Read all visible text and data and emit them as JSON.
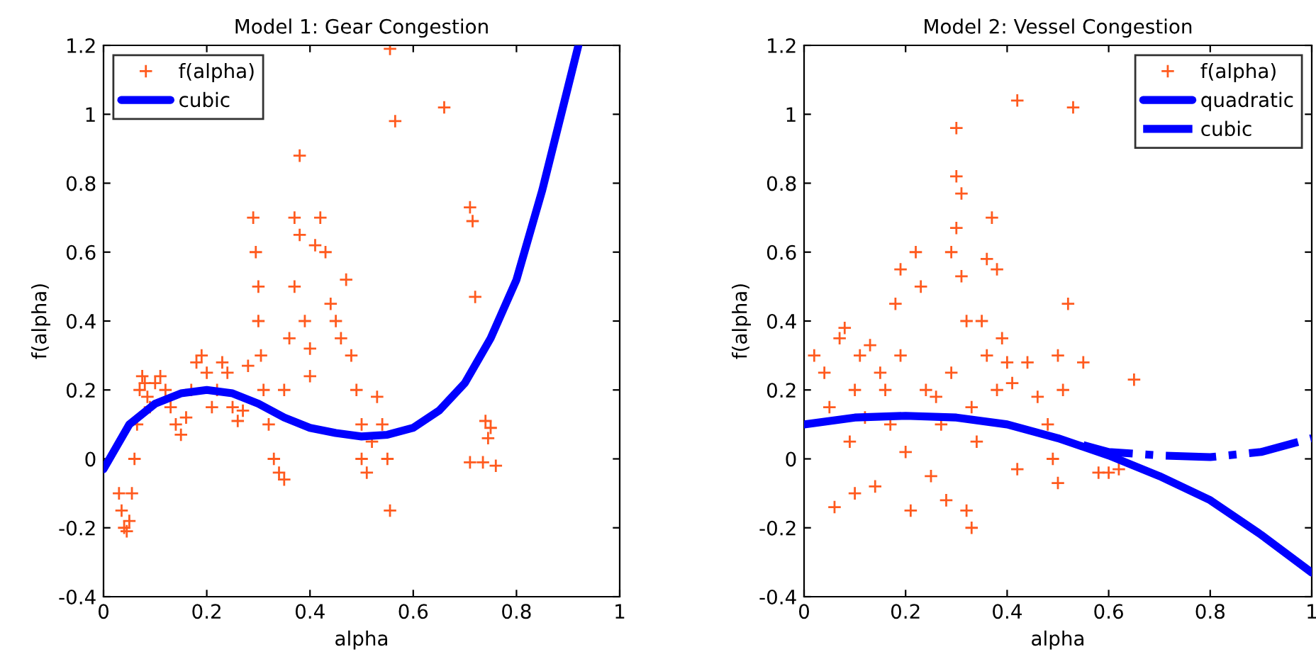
{
  "chart_data": [
    {
      "type": "scatter",
      "title": "Model 1: Gear Congestion",
      "xlabel": "alpha",
      "ylabel": "f(alpha)",
      "xlim": [
        0,
        1
      ],
      "ylim": [
        -0.4,
        1.2
      ],
      "xticks": [
        0,
        0.2,
        0.4,
        0.6,
        0.8,
        1
      ],
      "yticks": [
        -0.4,
        -0.2,
        0,
        0.2,
        0.4,
        0.6,
        0.8,
        1,
        1.2
      ],
      "grid": false,
      "legend": "top left",
      "series": [
        {
          "name": "f(alpha)",
          "type": "scatter",
          "marker": "cross",
          "color": "#ff5a1e",
          "x": [
            0.03,
            0.035,
            0.04,
            0.045,
            0.05,
            0.055,
            0.06,
            0.065,
            0.07,
            0.075,
            0.08,
            0.085,
            0.09,
            0.1,
            0.11,
            0.12,
            0.13,
            0.14,
            0.15,
            0.16,
            0.17,
            0.18,
            0.19,
            0.2,
            0.21,
            0.22,
            0.23,
            0.24,
            0.25,
            0.26,
            0.27,
            0.28,
            0.29,
            0.295,
            0.3,
            0.3,
            0.305,
            0.31,
            0.32,
            0.33,
            0.34,
            0.35,
            0.35,
            0.36,
            0.37,
            0.37,
            0.38,
            0.38,
            0.39,
            0.4,
            0.4,
            0.41,
            0.42,
            0.43,
            0.44,
            0.45,
            0.46,
            0.47,
            0.48,
            0.49,
            0.5,
            0.5,
            0.51,
            0.52,
            0.53,
            0.54,
            0.55,
            0.555,
            0.555,
            0.565,
            0.66,
            0.71,
            0.715,
            0.72,
            0.71,
            0.735,
            0.74,
            0.745,
            0.76,
            0.75
          ],
          "values": [
            -0.1,
            -0.15,
            -0.2,
            -0.21,
            -0.18,
            -0.1,
            0,
            0.1,
            0.2,
            0.24,
            0.22,
            0.18,
            0.15,
            0.22,
            0.24,
            0.2,
            0.15,
            0.1,
            0.07,
            0.12,
            0.2,
            0.28,
            0.3,
            0.25,
            0.15,
            0.2,
            0.28,
            0.25,
            0.15,
            0.11,
            0.14,
            0.27,
            0.7,
            0.6,
            0.5,
            0.4,
            0.3,
            0.2,
            0.1,
            0,
            -0.04,
            -0.06,
            0.2,
            0.35,
            0.5,
            0.7,
            0.65,
            0.88,
            0.4,
            0.32,
            0.24,
            0.62,
            0.7,
            0.6,
            0.45,
            0.4,
            0.35,
            0.52,
            0.3,
            0.2,
            0.1,
            0,
            -0.04,
            0.05,
            0.18,
            0.1,
            0,
            -0.15,
            1.19,
            0.98,
            1.02,
            0.73,
            0.69,
            0.47,
            -0.01,
            -0.01,
            0.11,
            0.06,
            -0.02,
            0.09
          ]
        },
        {
          "name": "cubic",
          "type": "line",
          "line_style": "solid",
          "color": "#0000ff",
          "x": [
            0,
            0.05,
            0.1,
            0.15,
            0.2,
            0.25,
            0.3,
            0.35,
            0.4,
            0.45,
            0.5,
            0.55,
            0.6,
            0.65,
            0.7,
            0.75,
            0.8,
            0.85,
            0.9,
            0.92
          ],
          "values": [
            -0.03,
            0.1,
            0.16,
            0.19,
            0.2,
            0.19,
            0.16,
            0.12,
            0.09,
            0.075,
            0.065,
            0.07,
            0.09,
            0.14,
            0.22,
            0.35,
            0.52,
            0.78,
            1.08,
            1.2
          ]
        }
      ]
    },
    {
      "type": "scatter",
      "title": "Model 2: Vessel Congestion",
      "xlabel": "alpha",
      "ylabel": "f(alpha)",
      "xlim": [
        0,
        1
      ],
      "ylim": [
        -0.4,
        1.2
      ],
      "xticks": [
        0,
        0.2,
        0.4,
        0.6,
        0.8,
        1
      ],
      "yticks": [
        -0.4,
        -0.2,
        0,
        0.2,
        0.4,
        0.6,
        0.8,
        1,
        1.2
      ],
      "grid": false,
      "legend": "top right",
      "series": [
        {
          "name": "f(alpha)",
          "type": "scatter",
          "marker": "cross",
          "color": "#ff5a1e",
          "x": [
            0.02,
            0.04,
            0.05,
            0.06,
            0.07,
            0.08,
            0.09,
            0.1,
            0.1,
            0.11,
            0.12,
            0.13,
            0.14,
            0.15,
            0.16,
            0.17,
            0.18,
            0.19,
            0.19,
            0.2,
            0.21,
            0.22,
            0.23,
            0.24,
            0.25,
            0.26,
            0.27,
            0.28,
            0.29,
            0.29,
            0.3,
            0.3,
            0.31,
            0.31,
            0.3,
            0.32,
            0.32,
            0.33,
            0.33,
            0.34,
            0.35,
            0.36,
            0.36,
            0.37,
            0.38,
            0.38,
            0.39,
            0.4,
            0.41,
            0.42,
            0.42,
            0.44,
            0.46,
            0.48,
            0.49,
            0.5,
            0.5,
            0.51,
            0.52,
            0.53,
            0.55,
            0.58,
            0.6,
            0.62,
            0.65
          ],
          "values": [
            0.3,
            0.25,
            0.15,
            -0.14,
            0.35,
            0.38,
            0.05,
            -0.1,
            0.2,
            0.3,
            0.12,
            0.33,
            -0.08,
            0.25,
            0.2,
            0.1,
            0.45,
            0.55,
            0.3,
            0.02,
            -0.15,
            0.6,
            0.5,
            0.2,
            -0.05,
            0.18,
            0.1,
            -0.12,
            0.6,
            0.25,
            0.96,
            0.82,
            0.77,
            0.53,
            0.67,
            0.4,
            -0.15,
            -0.2,
            0.15,
            0.05,
            0.4,
            0.58,
            0.3,
            0.7,
            0.55,
            0.2,
            0.35,
            0.28,
            0.22,
            1.04,
            -0.03,
            0.28,
            0.18,
            0.1,
            0,
            -0.07,
            0.3,
            0.2,
            0.45,
            1.02,
            0.28,
            -0.04,
            -0.04,
            -0.03,
            0.23
          ]
        },
        {
          "name": "quadratic",
          "type": "line",
          "line_style": "solid",
          "color": "#0000ff",
          "x": [
            0,
            0.1,
            0.2,
            0.3,
            0.4,
            0.5,
            0.6,
            0.7,
            0.8,
            0.9,
            1
          ],
          "values": [
            0.1,
            0.12,
            0.125,
            0.12,
            0.1,
            0.06,
            0.01,
            -0.05,
            -0.12,
            -0.22,
            -0.33
          ]
        },
        {
          "name": "cubic",
          "type": "line",
          "line_style": "dashdot",
          "color": "#0000ff",
          "x": [
            0.55,
            0.6,
            0.7,
            0.8,
            0.9,
            1
          ],
          "values": [
            0.04,
            0.02,
            0.01,
            0.005,
            0.02,
            0.06
          ]
        }
      ]
    }
  ]
}
